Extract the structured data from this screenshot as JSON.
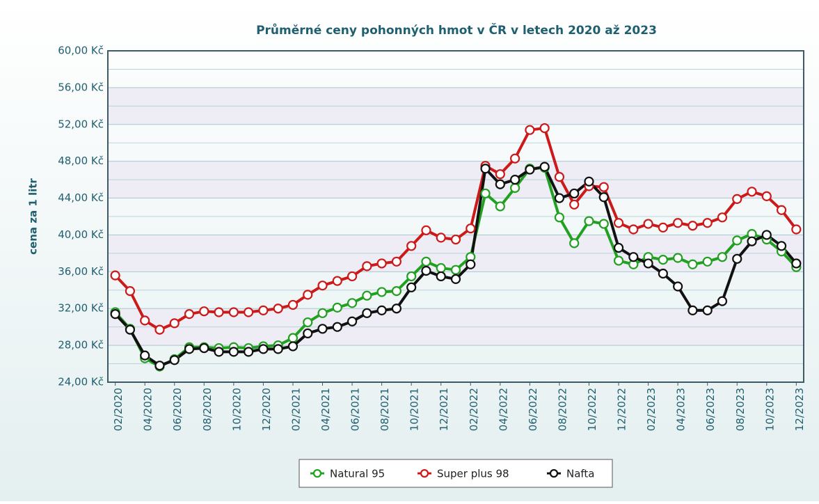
{
  "chart_data": {
    "type": "line",
    "title": "Průměrné ceny pohonných hmot v ČR v letech 2020 až 2023",
    "y_label": "cena za 1 litr",
    "categories": [
      "02/2020",
      null,
      "04/2020",
      null,
      "06/2020",
      null,
      "08/2020",
      null,
      "10/2020",
      null,
      "12/2020",
      null,
      "02/2021",
      null,
      "04/2021",
      null,
      "06/2021",
      null,
      "08/2021",
      null,
      "10/2021",
      null,
      "12/2021",
      null,
      "02/2022",
      null,
      "04/2022",
      null,
      "06/2022",
      null,
      "08/2022",
      null,
      "10/2022",
      null,
      "12/2022",
      null,
      "02/2023",
      null,
      "04/2023",
      null,
      "06/2023",
      null,
      "08/2023",
      null,
      "10/2023",
      null,
      "12/2023"
    ],
    "series": [
      {
        "name": "Natural 95",
        "color": "#22a022",
        "values": [
          31.6,
          29.8,
          26.6,
          25.7,
          26.5,
          27.8,
          27.8,
          27.7,
          27.8,
          27.7,
          27.9,
          28.0,
          28.8,
          30.5,
          31.5,
          32.1,
          32.6,
          33.4,
          33.8,
          33.9,
          35.5,
          37.1,
          36.4,
          36.2,
          37.6,
          44.5,
          43.1,
          45.1,
          47.2,
          47.3,
          41.9,
          39.1,
          41.5,
          41.2,
          37.2,
          36.8,
          37.6,
          37.3,
          37.5,
          36.8,
          37.1,
          37.6,
          39.4,
          40.1,
          39.5,
          38.2,
          36.5
        ]
      },
      {
        "name": "Super plus 98",
        "color": "#cc1a1a",
        "values": [
          35.6,
          33.9,
          30.7,
          29.7,
          30.4,
          31.4,
          31.7,
          31.6,
          31.6,
          31.6,
          31.8,
          32.0,
          32.4,
          33.5,
          34.5,
          35.0,
          35.5,
          36.6,
          36.9,
          37.1,
          38.8,
          40.5,
          39.7,
          39.5,
          40.7,
          47.5,
          46.6,
          48.3,
          51.4,
          51.6,
          46.3,
          43.3,
          45.3,
          45.2,
          41.3,
          40.6,
          41.2,
          40.8,
          41.3,
          41.0,
          41.3,
          41.9,
          43.9,
          44.7,
          44.2,
          42.7,
          40.6
        ]
      },
      {
        "name": "Nafta",
        "color": "#111111",
        "values": [
          31.4,
          29.7,
          26.9,
          25.8,
          26.4,
          27.6,
          27.7,
          27.3,
          27.3,
          27.3,
          27.6,
          27.6,
          27.9,
          29.3,
          29.8,
          30.0,
          30.6,
          31.5,
          31.8,
          32.0,
          34.3,
          36.1,
          35.5,
          35.2,
          36.8,
          47.2,
          45.5,
          46.0,
          47.1,
          47.4,
          44.0,
          44.5,
          45.8,
          44.1,
          38.6,
          37.6,
          36.9,
          35.8,
          34.4,
          31.8,
          31.8,
          32.8,
          37.4,
          39.3,
          40.0,
          38.8,
          36.9
        ]
      }
    ],
    "ylim": [
      24,
      60
    ],
    "yticks": [
      {
        "value": 24,
        "label": "24,00 Kč"
      },
      {
        "value": 28,
        "label": "28,00 Kč"
      },
      {
        "value": 32,
        "label": "32,00 Kč"
      },
      {
        "value": 36,
        "label": "36,00 Kč"
      },
      {
        "value": 40,
        "label": "40,00 Kč"
      },
      {
        "value": 44,
        "label": "44,00 Kč"
      },
      {
        "value": 48,
        "label": "48,00 Kč"
      },
      {
        "value": 52,
        "label": "52,00 Kč"
      },
      {
        "value": 56,
        "label": "56,00 Kč"
      },
      {
        "value": 60,
        "label": "60,00 Kč"
      }
    ],
    "grid": true,
    "legend": "bottom"
  }
}
